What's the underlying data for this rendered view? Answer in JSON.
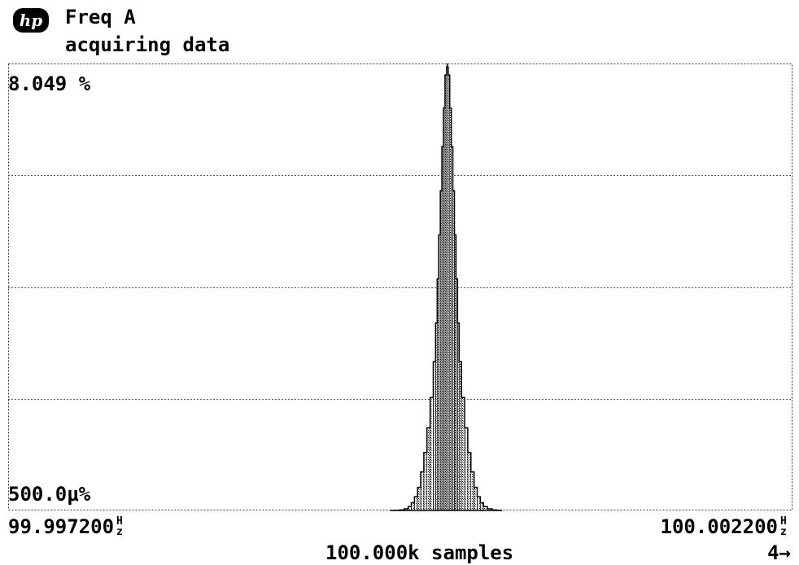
{
  "header": {
    "logo_text": "hp",
    "title": "Freq A",
    "status": "acquiring data"
  },
  "histogram": {
    "y_max_label": "8.049 %",
    "y_min_label": "500.0μ%",
    "x_min_label": "99.997200",
    "x_max_label": "100.002200",
    "x_unit_top": "H",
    "x_unit_bottom": "z",
    "samples_label": "100.000k samples",
    "page_indicator": "4→",
    "grid": true,
    "horizontal_divisions": 4,
    "fill_color": "#9a9a9a",
    "line_color": "#000000",
    "grid_color": "#555555"
  },
  "chart_data": {
    "type": "area",
    "x": [
      99.99965,
      99.99968,
      99.99971,
      99.99974,
      99.99976,
      99.99978,
      99.9998,
      99.99982,
      99.99984,
      99.99986,
      99.99988,
      99.9999,
      99.99992,
      99.99993,
      99.99994,
      99.99995,
      99.99996,
      99.99997,
      99.99998,
      99.99999,
      100.0,
      100.00001,
      100.00002,
      100.00003,
      100.00004,
      100.00005,
      100.00006,
      100.00007,
      100.00008,
      100.0001,
      100.00012,
      100.00014,
      100.00016,
      100.00018,
      100.0002,
      100.00022,
      100.00024,
      100.00027,
      100.0003,
      100.00033
    ],
    "y": [
      0.0005,
      0.003,
      0.01,
      0.03,
      0.07,
      0.14,
      0.25,
      0.42,
      0.7,
      1.05,
      1.5,
      2.05,
      2.7,
      3.4,
      4.2,
      5.0,
      5.8,
      6.6,
      7.3,
      7.9,
      8.049,
      7.9,
      7.3,
      6.6,
      5.8,
      5.0,
      4.2,
      3.4,
      2.7,
      2.05,
      1.5,
      1.05,
      0.7,
      0.42,
      0.25,
      0.14,
      0.07,
      0.03,
      0.01,
      0.003
    ],
    "xlim": [
      99.9972,
      100.0022
    ],
    "ylim": [
      0.0005,
      8.049
    ],
    "title": "Freq A",
    "xlabel": "",
    "ylabel": "",
    "grid": true
  }
}
